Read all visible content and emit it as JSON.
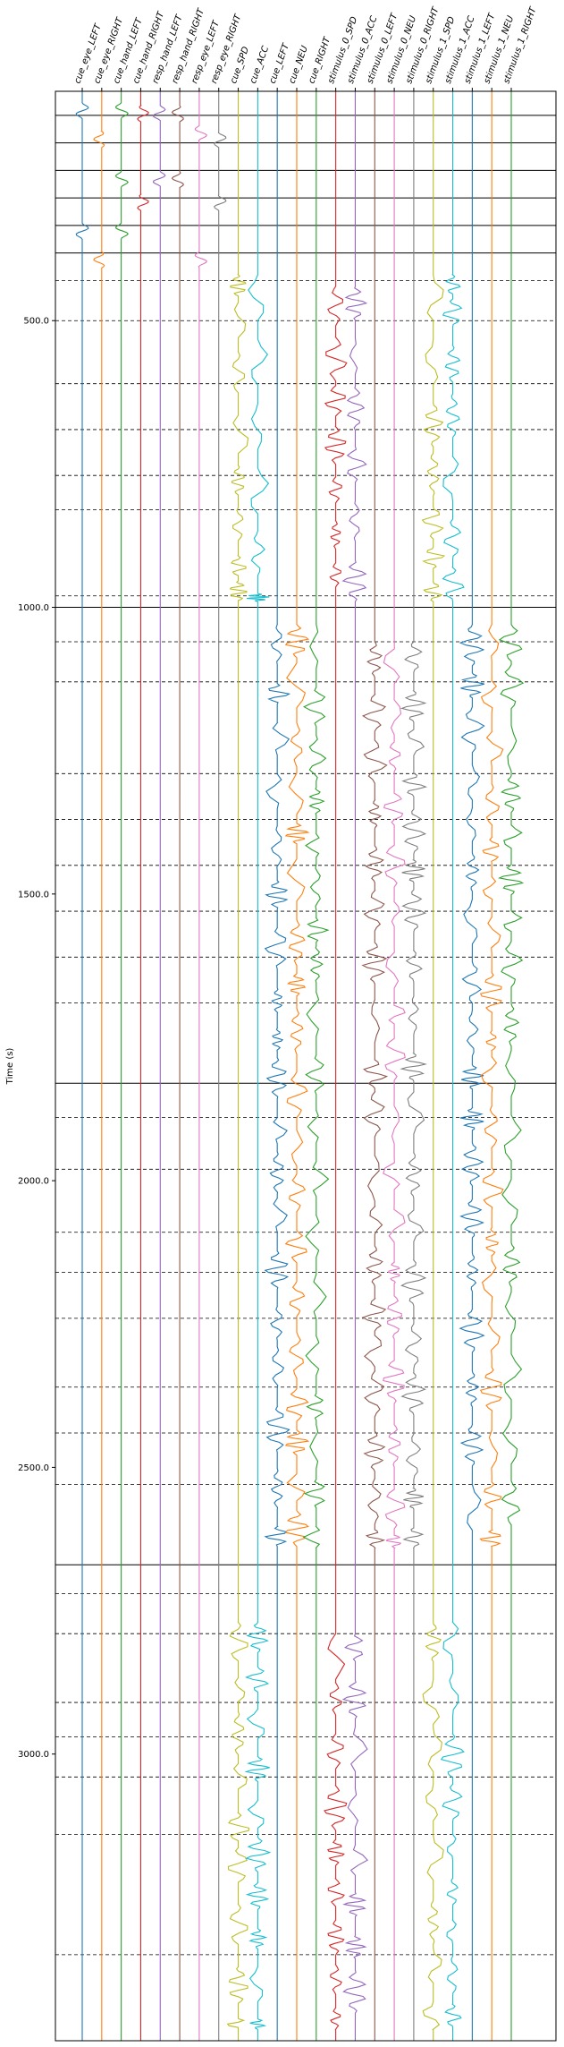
{
  "chart_data": {
    "type": "line",
    "title": "",
    "xlabel": "",
    "ylabel": "Time (s)",
    "ylim": [
      100,
      3500
    ],
    "y_inverted": true,
    "yticks": [
      "500.0",
      "1000.0",
      "1500.0",
      "2000.0",
      "2500.0",
      "3000.0"
    ],
    "grid": false,
    "series": [
      {
        "name": "cue_eye_LEFT",
        "color": "#1f77b4",
        "events": [
          120,
          330
        ]
      },
      {
        "name": "cue_eye_RIGHT",
        "color": "#ff7f0e",
        "events": [
          170,
          380
        ]
      },
      {
        "name": "cue_hand_LEFT",
        "color": "#2ca02c",
        "events": [
          120,
          240,
          330
        ]
      },
      {
        "name": "cue_hand_RIGHT",
        "color": "#d62728",
        "events": [
          125,
          280
        ]
      },
      {
        "name": "resp_hand_LEFT",
        "color": "#9467bd",
        "events": [
          125,
          240
        ]
      },
      {
        "name": "resp_hand_RIGHT",
        "color": "#8c564b",
        "events": [
          125,
          240
        ]
      },
      {
        "name": "resp_eye_LEFT",
        "color": "#e377c2",
        "events": [
          160,
          380
        ]
      },
      {
        "name": "resp_eye_RIGHT",
        "color": "#7f7f7f",
        "events": [
          170,
          280
        ]
      },
      {
        "name": "cue_SPD",
        "color": "#bcbd22",
        "blocks": [
          [
            420,
            990
          ],
          [
            2770,
            3480
          ]
        ]
      },
      {
        "name": "cue_ACC",
        "color": "#17becf",
        "blocks": [
          [
            420,
            990
          ],
          [
            2770,
            3480
          ]
        ]
      },
      {
        "name": "cue_LEFT",
        "color": "#1f77b4",
        "blocks": [
          [
            1030,
            2640
          ]
        ]
      },
      {
        "name": "cue_NEU",
        "color": "#ff7f0e",
        "blocks": [
          [
            1030,
            2640
          ]
        ]
      },
      {
        "name": "cue_RIGHT",
        "color": "#2ca02c",
        "blocks": [
          [
            1030,
            2640
          ]
        ]
      },
      {
        "name": "stimulus_0_SPD",
        "color": "#d62728",
        "blocks": [
          [
            440,
            990
          ],
          [
            2790,
            3480
          ]
        ]
      },
      {
        "name": "stimulus_0_ACC",
        "color": "#9467bd",
        "blocks": [
          [
            440,
            990
          ],
          [
            2790,
            3480
          ]
        ]
      },
      {
        "name": "stimulus_0_LEFT",
        "color": "#8c564b",
        "blocks": [
          [
            1060,
            2640
          ]
        ]
      },
      {
        "name": "stimulus_0_NEU",
        "color": "#e377c2",
        "blocks": [
          [
            1060,
            2640
          ]
        ]
      },
      {
        "name": "stimulus_0_RIGHT",
        "color": "#7f7f7f",
        "blocks": [
          [
            1060,
            2640
          ]
        ]
      },
      {
        "name": "stimulus_1_SPD",
        "color": "#bcbd22",
        "blocks": [
          [
            420,
            990
          ],
          [
            2770,
            3480
          ]
        ]
      },
      {
        "name": "stimulus_1_ACC",
        "color": "#17becf",
        "blocks": [
          [
            420,
            990
          ],
          [
            2770,
            3480
          ]
        ]
      },
      {
        "name": "stimulus_1_LEFT",
        "color": "#1f77b4",
        "blocks": [
          [
            1030,
            2640
          ]
        ]
      },
      {
        "name": "stimulus_1_NEU",
        "color": "#ff7f0e",
        "blocks": [
          [
            1030,
            2640
          ]
        ]
      },
      {
        "name": "stimulus_1_RIGHT",
        "color": "#2ca02c",
        "blocks": [
          [
            1030,
            2640
          ]
        ]
      }
    ],
    "solid_hlines": [
      142,
      190,
      238,
      286,
      334,
      382,
      1000,
      1830,
      2670
    ],
    "dashed_hlines": [
      430,
      500,
      610,
      690,
      770,
      830,
      980,
      1060,
      1130,
      1290,
      1370,
      1450,
      1530,
      1610,
      1690,
      1890,
      1980,
      2090,
      2160,
      2240,
      2360,
      2440,
      2530,
      2720,
      2790,
      2910,
      2970,
      3040,
      3140,
      3350
    ]
  }
}
